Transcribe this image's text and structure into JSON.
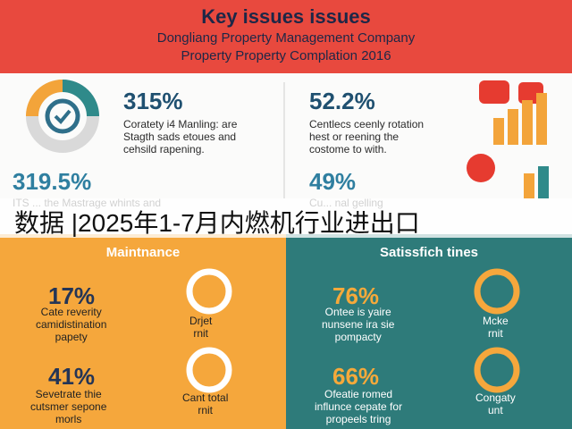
{
  "header": {
    "title": "Key issues issues",
    "subtitle": "Dongliang Property Management Company",
    "subtitle2": "Property Property Complation 2016"
  },
  "stats": [
    {
      "value": "315%",
      "lines": [
        "Coratety i4 Manling: are",
        "Stagth sads etoues and",
        "cehsild rapening."
      ]
    },
    {
      "value": "52.2%",
      "lines": [
        "Centlecs ceenly rotation",
        "hest or reening the",
        "costome to with."
      ]
    },
    {
      "value": "319.5%",
      "lines": [
        "ITS ... the Mastrage whints and"
      ]
    },
    {
      "value": "49%",
      "lines": [
        "Cu... nal gelling"
      ]
    }
  ],
  "caption": "数据 |2025年1-7月内燃机行业进出口",
  "panels": [
    {
      "title": "Maintnance",
      "items": [
        {
          "value": "17%",
          "lines": [
            "Cate reverity",
            "camidistination",
            "papety"
          ],
          "ring": [
            "Drjet",
            "rnit"
          ]
        },
        {
          "value": "41%",
          "lines": [
            "Sevetrate thie",
            "cutsmer sepone",
            "morls"
          ],
          "ring": [
            "Cant total",
            "rnit"
          ]
        }
      ]
    },
    {
      "title": "Satissfich tines",
      "items": [
        {
          "value": "76%",
          "lines": [
            "Ontee is yaire",
            "nunsene ira sie",
            "pompacty"
          ],
          "ring": [
            "Mcke",
            "rnit"
          ]
        },
        {
          "value": "66%",
          "lines": [
            "Ofeatie romed",
            "influnce cepate for",
            "propeels tring"
          ],
          "ring": [
            "Congaty",
            "unt"
          ]
        }
      ]
    }
  ]
}
